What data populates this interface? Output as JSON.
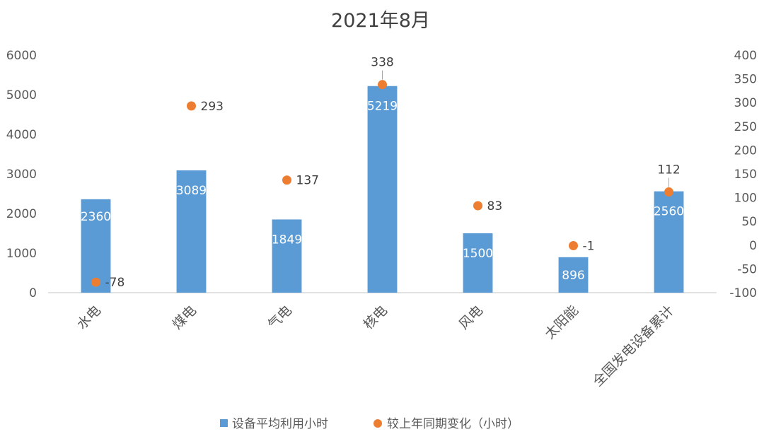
{
  "chart_data": {
    "type": "bar",
    "title": "2021年8月",
    "categories": [
      "水电",
      "煤电",
      "气电",
      "核电",
      "风电",
      "太阳能",
      "全国发电设备累计"
    ],
    "series": [
      {
        "name": "设备平均利用小时",
        "type": "bar",
        "axis": "left",
        "color": "#5B9BD5",
        "values": [
          2360,
          3089,
          1849,
          5219,
          1500,
          896,
          2560
        ],
        "labels": [
          "2360",
          "3089",
          "1849",
          "5219",
          "1500",
          "896",
          "2560"
        ]
      },
      {
        "name": "较上年同期变化（小时）",
        "type": "scatter",
        "axis": "right",
        "color": "#ED7D31",
        "values": [
          -78,
          293,
          137,
          338,
          83,
          -1,
          112
        ],
        "labels": [
          "-78",
          "293",
          "137",
          "338",
          "83",
          "-1",
          "112"
        ]
      }
    ],
    "y_left": {
      "ylim": [
        0,
        6000
      ],
      "ticks": [
        0,
        1000,
        2000,
        3000,
        4000,
        5000,
        6000
      ],
      "tick_labels": [
        "0",
        "1000",
        "2000",
        "3000",
        "4000",
        "5000",
        "6000"
      ]
    },
    "y_right": {
      "ylim": [
        -100,
        400
      ],
      "ticks": [
        -100,
        -50,
        0,
        50,
        100,
        150,
        200,
        250,
        300,
        350,
        400
      ],
      "tick_labels": [
        "-100",
        "-50",
        "0",
        "50",
        "100",
        "150",
        "200",
        "250",
        "300",
        "350",
        "400"
      ]
    },
    "grid": false,
    "legend_position": "bottom"
  }
}
